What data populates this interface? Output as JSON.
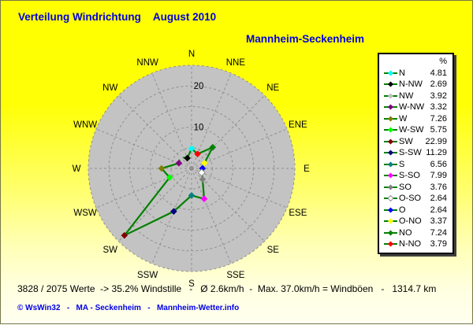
{
  "header": {
    "title": "Verteilung Windrichtung",
    "period": "August 2010",
    "station": "Mannheim-Seckenheim"
  },
  "colors": {
    "title_blue": "#0000d8",
    "link_blue": "#0000e8",
    "bg_top": "#ffff00",
    "bg_bottom": "#fffff0",
    "plot_fill": "#c3c3c3",
    "grid_line": "#8f8f8f",
    "polygon_line": "#008000",
    "text_black": "#000000"
  },
  "chart_data": {
    "type": "radar",
    "variant": "wind-rose-16-sector",
    "unit": "%",
    "rmax": 25,
    "grid_step": 5,
    "radial_ticks": [
      10,
      20
    ],
    "grid_style": "dashed",
    "compass_order_clockwise": [
      "N",
      "NNE",
      "NE",
      "ENE",
      "E",
      "ESE",
      "SE",
      "SSE",
      "S",
      "SSW",
      "SW",
      "WSW",
      "W",
      "WNW",
      "NW",
      "NNW"
    ],
    "series": [
      {
        "label": "N",
        "angle": 0,
        "value": 4.81,
        "color": "#00FFFF"
      },
      {
        "label": "N-NW",
        "angle": 337.5,
        "value": 2.69,
        "color": "#000000"
      },
      {
        "label": "NW",
        "angle": 315,
        "value": 3.92,
        "color": "#C0C0C0"
      },
      {
        "label": "W-NW",
        "angle": 292.5,
        "value": 3.32,
        "color": "#800080"
      },
      {
        "label": "W",
        "angle": 270,
        "value": 7.26,
        "color": "#808000"
      },
      {
        "label": "W-SW",
        "angle": 247.5,
        "value": 5.75,
        "color": "#00FF00"
      },
      {
        "label": "SW",
        "angle": 225,
        "value": 22.99,
        "color": "#800000"
      },
      {
        "label": "S-SW",
        "angle": 202.5,
        "value": 11.29,
        "color": "#000080"
      },
      {
        "label": "S",
        "angle": 180,
        "value": 6.56,
        "color": "#008080"
      },
      {
        "label": "S-SO",
        "angle": 157.5,
        "value": 7.99,
        "color": "#FF00FF"
      },
      {
        "label": "SO",
        "angle": 135,
        "value": 3.76,
        "color": "#808080"
      },
      {
        "label": "O-SO",
        "angle": 112.5,
        "value": 2.64,
        "color": "#FFFFFF"
      },
      {
        "label": "O",
        "angle": 90,
        "value": 2.64,
        "color": "#0000FF"
      },
      {
        "label": "O-NO",
        "angle": 67.5,
        "value": 3.37,
        "color": "#FFFF00"
      },
      {
        "label": "NO",
        "angle": 45,
        "value": 7.24,
        "color": "#008000"
      },
      {
        "label": "N-NO",
        "angle": 22.5,
        "value": 3.79,
        "color": "#FF0000"
      }
    ]
  },
  "legend": {
    "header": "%"
  },
  "status_line": "3828 / 2075 Werte  -> 35.2% Windstille   -   Ø 2.6km/h  -  Max. 37.0km/h = Windböen   -   1314.7 km",
  "footer": {
    "text": "© WsWin32   -   MA - Seckenheim   -   Mannheim-Wetter.info"
  }
}
